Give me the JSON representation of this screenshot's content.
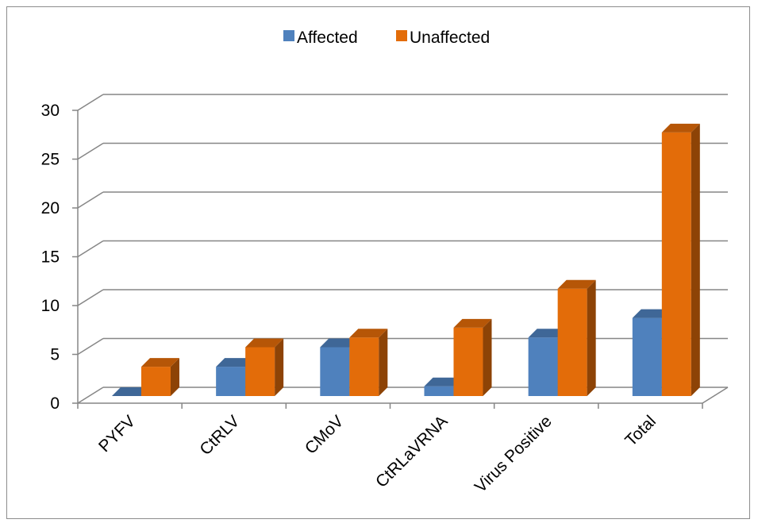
{
  "chart_data": {
    "type": "bar",
    "title": "",
    "xlabel": "",
    "ylabel": "",
    "categories": [
      "PYFV",
      "CtRLV",
      "CMoV",
      "CtRLaVRNA",
      "Virus Positive",
      "Total"
    ],
    "series": [
      {
        "name": "Affected",
        "values": [
          0,
          3,
          5,
          1,
          6,
          8
        ],
        "color": "#4f81bd"
      },
      {
        "name": "Unaffected",
        "values": [
          3,
          5,
          6,
          7,
          11,
          27
        ],
        "color": "#e36c09"
      }
    ],
    "ylim": [
      0,
      30
    ],
    "yticks": [
      "0",
      "5",
      "10",
      "15",
      "20",
      "25",
      "30"
    ],
    "grid": true,
    "legend_position": "top",
    "style": "3d-clustered-column"
  }
}
